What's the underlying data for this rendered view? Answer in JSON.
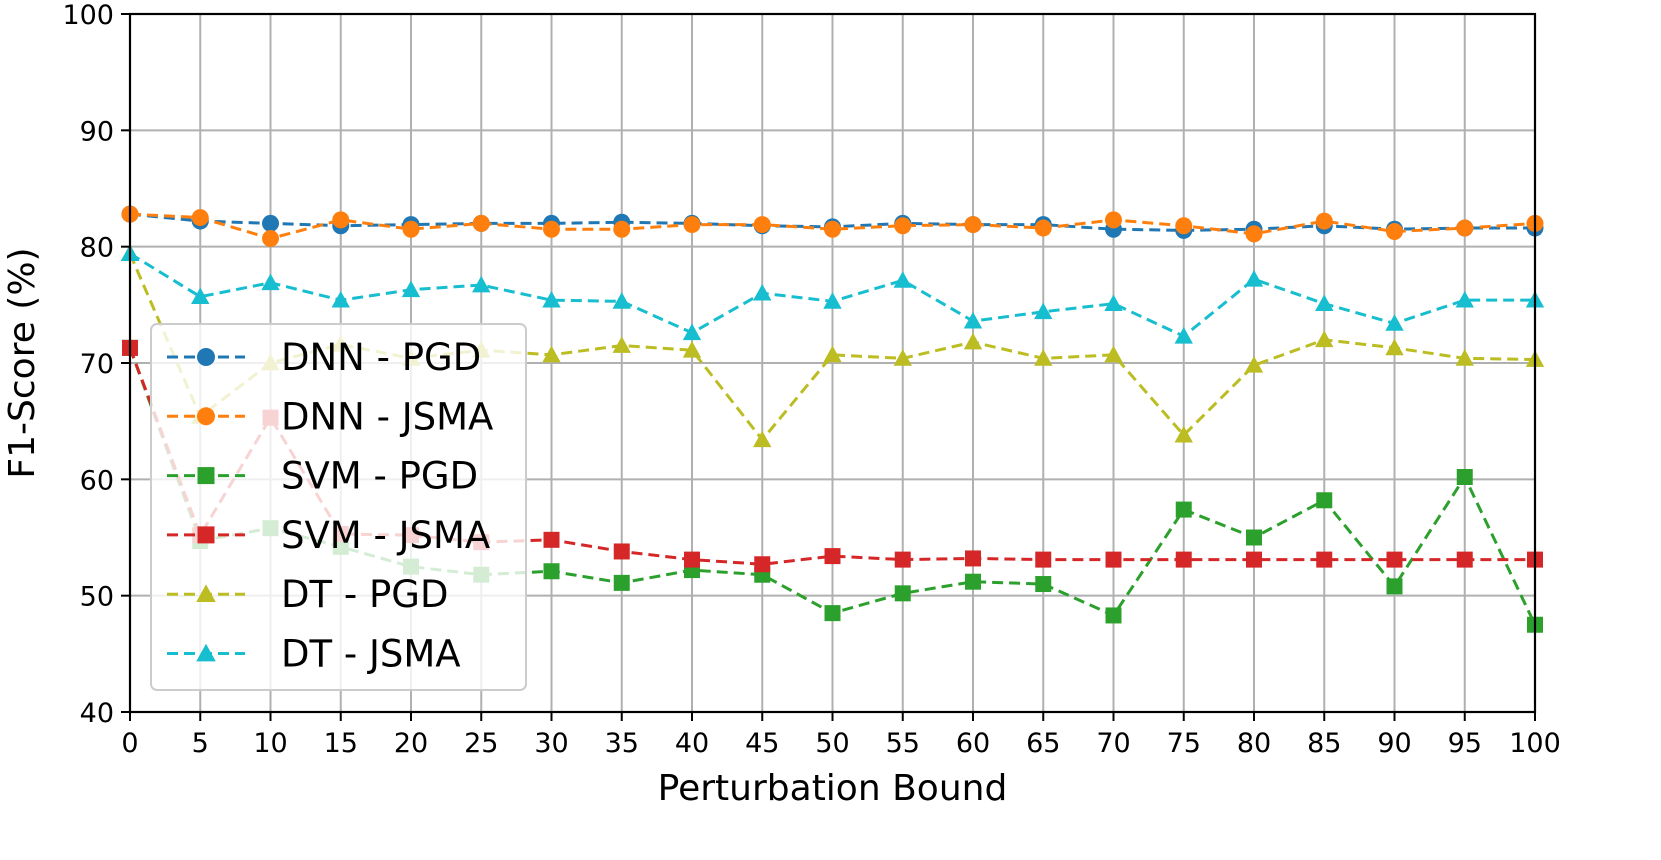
{
  "chart_data": {
    "type": "line",
    "title": "",
    "xlabel": "Perturbation Bound",
    "ylabel": "F1-Score (%)",
    "xlim": [
      0,
      100
    ],
    "ylim": [
      40,
      100
    ],
    "x": [
      0,
      5,
      10,
      15,
      20,
      25,
      30,
      35,
      40,
      45,
      50,
      55,
      60,
      65,
      70,
      75,
      80,
      85,
      90,
      95,
      100
    ],
    "x_ticks": [
      "0",
      "5",
      "10",
      "15",
      "20",
      "25",
      "30",
      "35",
      "40",
      "45",
      "50",
      "55",
      "60",
      "65",
      "70",
      "75",
      "80",
      "85",
      "90",
      "95",
      "100"
    ],
    "y_ticks": [
      "40",
      "50",
      "60",
      "70",
      "80",
      "90",
      "100"
    ],
    "grid": true,
    "legend_position": "left",
    "series": [
      {
        "name": "DNN - PGD",
        "color": "#1f77b4",
        "marker": "circle",
        "values": [
          82.8,
          82.2,
          82.0,
          81.8,
          81.9,
          82.0,
          82.0,
          82.1,
          82.0,
          81.8,
          81.7,
          82.0,
          81.9,
          81.9,
          81.5,
          81.4,
          81.5,
          81.8,
          81.5,
          81.6,
          81.6
        ]
      },
      {
        "name": "DNN - JSMA",
        "color": "#ff7f0e",
        "marker": "circle",
        "values": [
          82.8,
          82.5,
          80.7,
          82.3,
          81.5,
          82.0,
          81.5,
          81.5,
          81.9,
          81.9,
          81.5,
          81.8,
          81.9,
          81.6,
          82.3,
          81.8,
          81.1,
          82.2,
          81.3,
          81.6,
          82.0
        ]
      },
      {
        "name": "SVM - PGD",
        "color": "#2ca02c",
        "marker": "square",
        "values": [
          71.3,
          54.7,
          55.8,
          54.2,
          52.5,
          51.8,
          52.1,
          51.1,
          52.2,
          51.8,
          48.5,
          50.2,
          51.2,
          51.0,
          48.3,
          57.4,
          55.0,
          58.2,
          50.8,
          60.2,
          47.5
        ]
      },
      {
        "name": "SVM - JSMA",
        "color": "#d62728",
        "marker": "square",
        "values": [
          71.3,
          55.2,
          65.3,
          55.3,
          55.2,
          54.6,
          54.8,
          53.8,
          53.1,
          52.7,
          53.4,
          53.1,
          53.2,
          53.1,
          53.1,
          53.1,
          53.1,
          53.1,
          53.1,
          53.1,
          53.1
        ]
      },
      {
        "name": "DT - PGD",
        "color": "#bcbd22",
        "marker": "triangle",
        "values": [
          79.4,
          65.4,
          70.0,
          71.6,
          70.4,
          71.1,
          70.7,
          71.5,
          71.1,
          63.4,
          70.7,
          70.4,
          71.8,
          70.4,
          70.7,
          63.8,
          69.8,
          72.0,
          71.3,
          70.4,
          70.3
        ]
      },
      {
        "name": "DT - JSMA",
        "color": "#17becf",
        "marker": "triangle",
        "values": [
          79.4,
          75.7,
          76.9,
          75.4,
          76.3,
          76.7,
          75.4,
          75.3,
          72.6,
          76.0,
          75.3,
          77.1,
          73.6,
          74.4,
          75.1,
          72.3,
          77.2,
          75.1,
          73.4,
          75.4,
          75.4
        ]
      }
    ]
  }
}
